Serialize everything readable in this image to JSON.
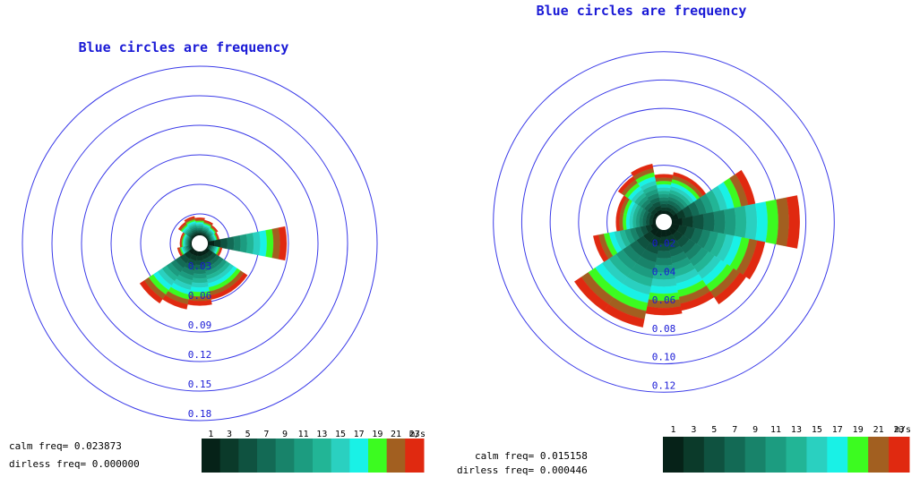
{
  "chart_data": [
    {
      "type": "polar-area",
      "title": "Blue circles are frequency",
      "ring_labels": [
        "0.03",
        "0.06",
        "0.09",
        "0.12",
        "0.15",
        "0.18"
      ],
      "rings": [
        0.03,
        0.06,
        0.09,
        0.12,
        0.15,
        0.18
      ],
      "rmax": 0.2,
      "directions_deg": [
        0,
        22.5,
        45,
        67.5,
        90,
        112.5,
        135,
        157.5,
        180,
        202.5,
        225,
        247.5,
        270,
        292.5,
        315,
        337.5
      ],
      "frequencies": [
        0.018,
        0.016,
        0.014,
        0.012,
        0.08,
        0.015,
        0.05,
        0.05,
        0.055,
        0.06,
        0.065,
        0.015,
        0.012,
        0.012,
        0.018,
        0.02
      ],
      "speed_bins": [
        "1",
        "3",
        "5",
        "7",
        "9",
        "11",
        "13",
        "15",
        "17",
        "19",
        "21",
        "23"
      ],
      "speed_unit": "m/s",
      "calm_label": "calm freq= 0.023873",
      "dirless_label": "dirless freq= 0.000000",
      "calm_freq": 0.023873,
      "dirless_freq": 0.0
    },
    {
      "type": "polar-area",
      "title": "Blue circles are frequency",
      "ring_labels": [
        "0.02",
        "0.04",
        "0.06",
        "0.08",
        "0.10",
        "0.12"
      ],
      "rings": [
        0.02,
        0.04,
        0.06,
        0.08,
        0.1,
        0.12
      ],
      "rmax": 0.14,
      "directions_deg": [
        0,
        22.5,
        45,
        67.5,
        90,
        112.5,
        135,
        157.5,
        180,
        202.5,
        225,
        247.5,
        270,
        292.5,
        315,
        337.5
      ],
      "frequencies": [
        0.028,
        0.03,
        0.03,
        0.06,
        0.09,
        0.067,
        0.064,
        0.058,
        0.06,
        0.07,
        0.07,
        0.045,
        0.028,
        0.028,
        0.033,
        0.036
      ],
      "speed_bins": [
        "1",
        "3",
        "5",
        "7",
        "9",
        "11",
        "13",
        "15",
        "17",
        "19",
        "21",
        "23"
      ],
      "speed_unit": "m/s",
      "calm_label": "calm freq= 0.015158",
      "dirless_label": "dirless freq= 0.000446",
      "calm_freq": 0.015158,
      "dirless_freq": 0.000446
    }
  ],
  "colors": {
    "ring": "#3a3ae8",
    "ring_label": "#1a1ad6",
    "title": "#1a1ad6",
    "speed_scale": [
      "#062218",
      "#0b3a2a",
      "#0f5240",
      "#136a55",
      "#18836a",
      "#1c9c80",
      "#22b596",
      "#2ad0c0",
      "#19f1e6",
      "#3cfb20",
      "#a25f20",
      "#e02910"
    ]
  }
}
